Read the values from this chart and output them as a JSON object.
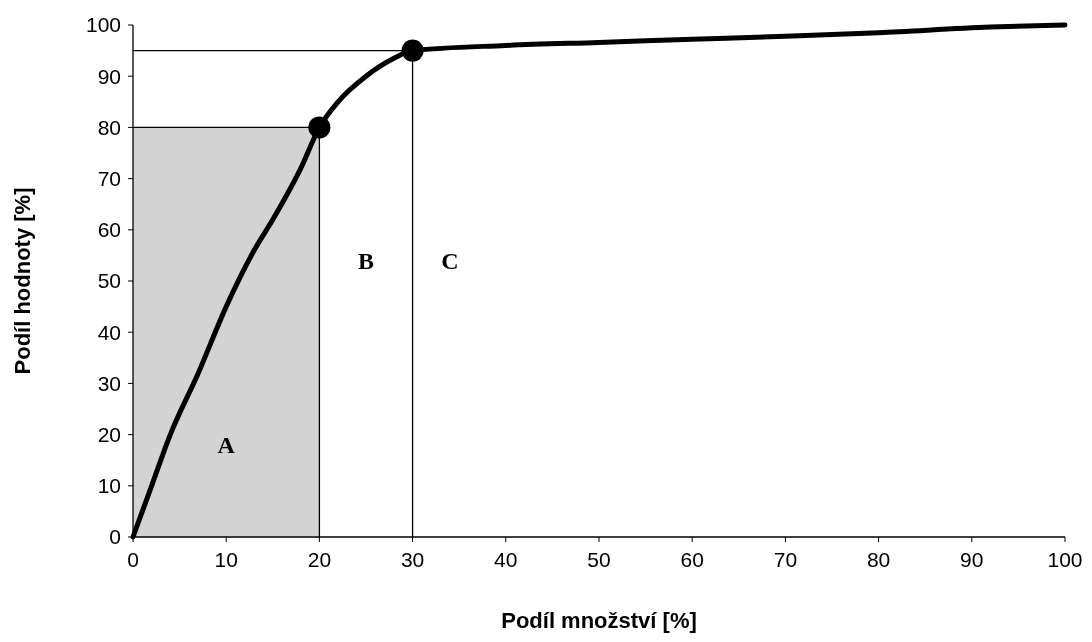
{
  "chart_data": {
    "type": "line",
    "xlabel": "Podíl množství [%]",
    "ylabel": "Podíl hodnoty [%]",
    "xlim": [
      0,
      100
    ],
    "ylim": [
      0,
      100
    ],
    "xticks": [
      0,
      10,
      20,
      30,
      40,
      50,
      60,
      70,
      80,
      90,
      100
    ],
    "yticks": [
      0,
      10,
      20,
      30,
      40,
      50,
      60,
      70,
      80,
      90,
      100
    ],
    "grid": false,
    "marker": "none",
    "line_style": "solid",
    "series": [
      {
        "color": "#000000",
        "x": [
          0,
          2,
          4,
          7,
          10,
          13,
          15,
          18,
          20,
          22,
          25,
          28,
          30,
          40,
          50,
          60,
          70,
          80,
          92,
          100
        ],
        "values": [
          0,
          10,
          20,
          32,
          45,
          56,
          62,
          72,
          80,
          85,
          90,
          93.5,
          95,
          96,
          96.6,
          97.2,
          97.8,
          98.5,
          99.6,
          100
        ]
      },
      {
        "type": "scatter",
        "color": "#000000",
        "marker": "circle",
        "x": [
          20,
          30
        ],
        "values": [
          80,
          95
        ]
      }
    ],
    "ref_lines": [
      {
        "axis": "x",
        "value": 20,
        "color": "#000000"
      },
      {
        "axis": "y",
        "value": 80,
        "color": "#000000"
      },
      {
        "axis": "x",
        "value": 30,
        "color": "#000000"
      },
      {
        "axis": "y",
        "value": 95,
        "color": "#000000"
      }
    ],
    "bands": [
      {
        "axis": "x",
        "from": 0,
        "to": 20,
        "color": "#d3d3d3"
      }
    ],
    "annotations": [
      "A",
      "B",
      "C"
    ]
  }
}
